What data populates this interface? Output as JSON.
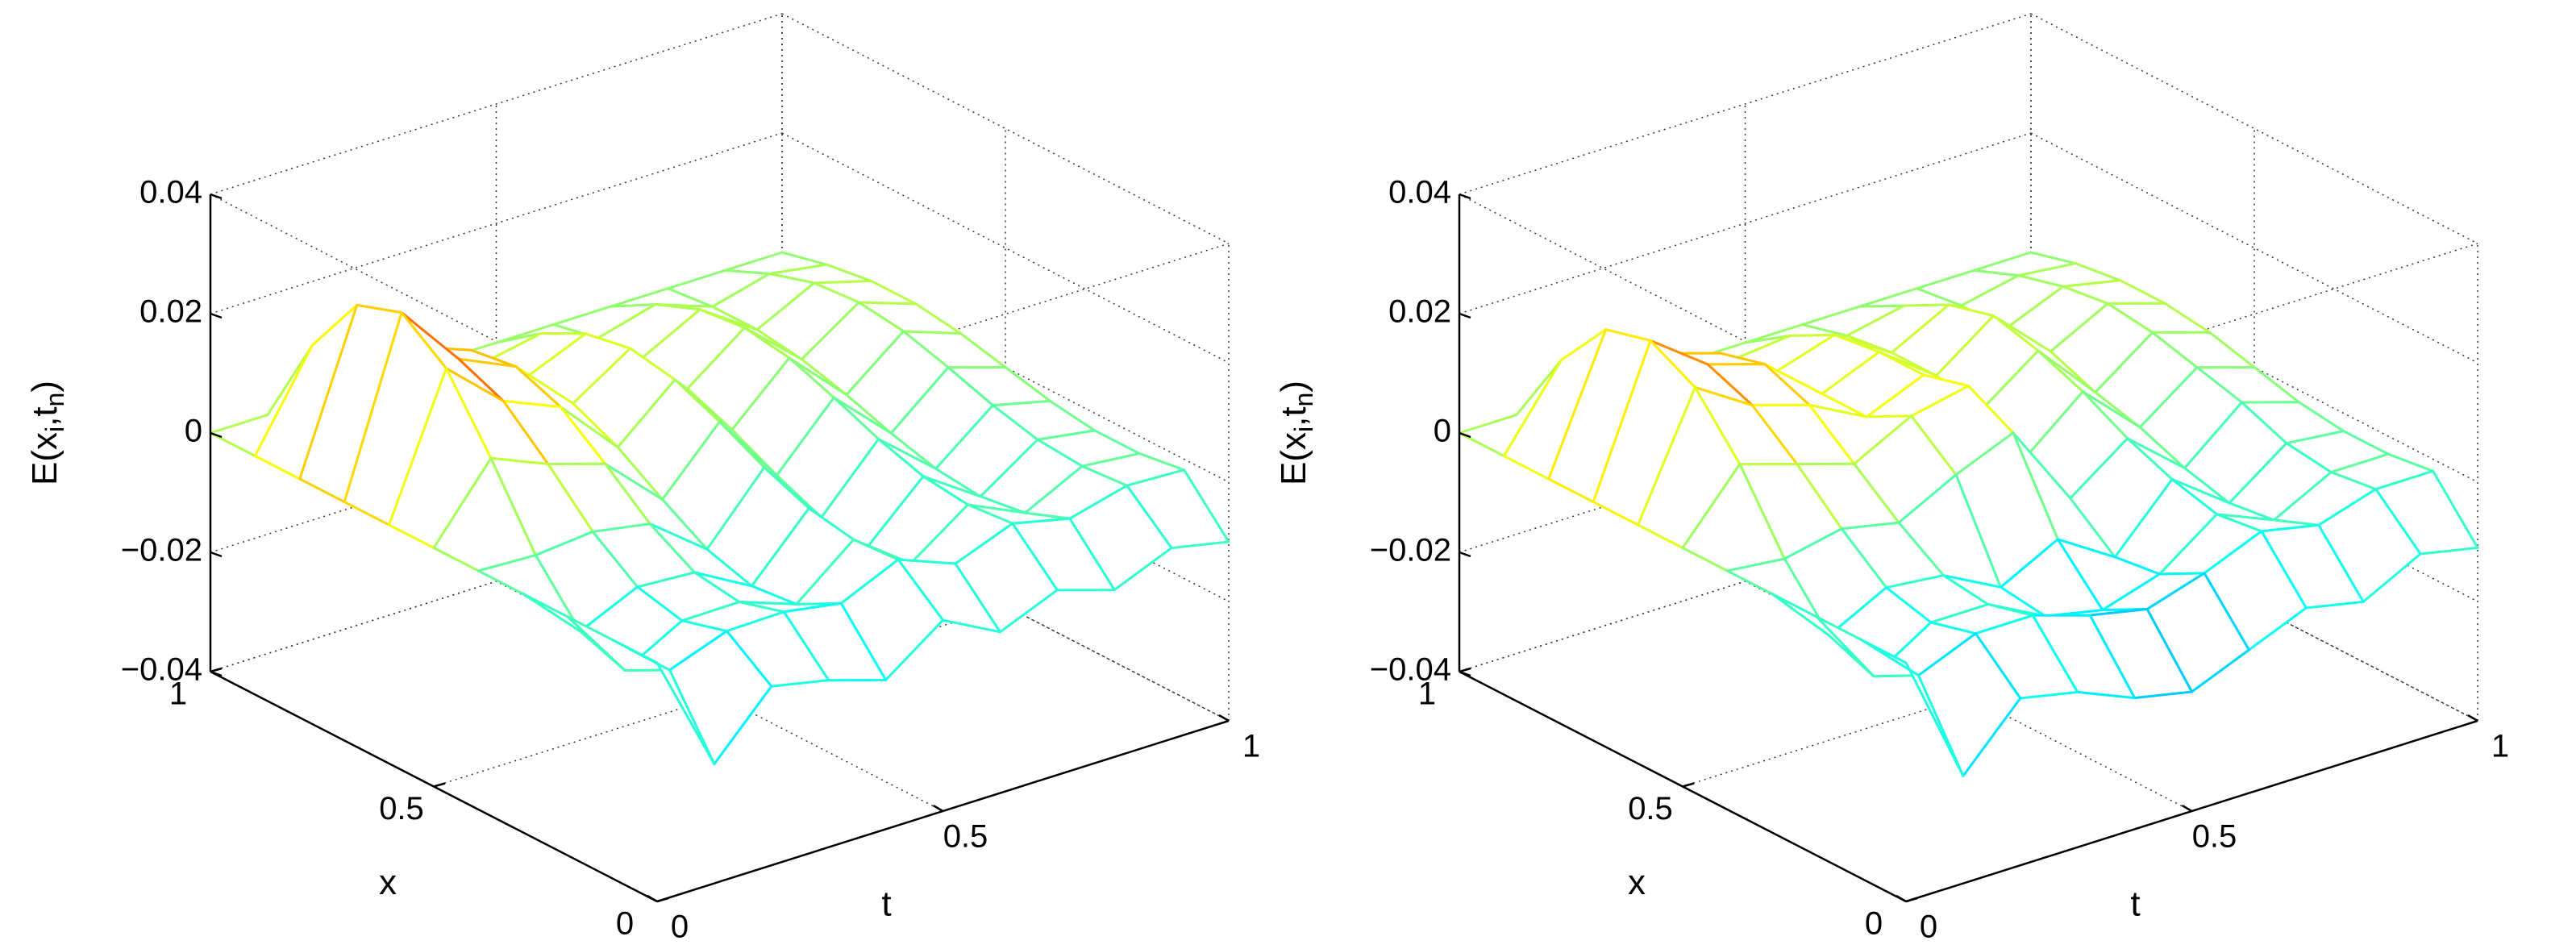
{
  "chart_data": [
    {
      "type": "surface",
      "colormap": "jet",
      "grid": true,
      "xlabel": "x",
      "ylabel": "t",
      "zlabel": [
        "E(x",
        "i",
        ",t",
        "n",
        ")"
      ],
      "xlim": [
        0,
        1
      ],
      "xticks": [
        0,
        0.5,
        1
      ],
      "tlim": [
        0,
        1
      ],
      "tticks": [
        0,
        0.5,
        1
      ],
      "zlim": [
        -0.04,
        0.04
      ],
      "zticks": [
        {
          "value": -0.04,
          "label": "−0.04"
        },
        {
          "value": -0.02,
          "label": "−0.02"
        },
        0,
        0.02,
        0.04
      ],
      "x": [
        0,
        0.1,
        0.2,
        0.3,
        0.4,
        0.5,
        0.6,
        0.7,
        0.8,
        0.9,
        1
      ],
      "t": [
        0,
        0.1,
        0.2,
        0.3,
        0.4,
        0.5,
        0.6,
        0.7,
        0.8,
        0.9,
        1
      ],
      "z": [
        [
          0,
          -0.02,
          -0.01,
          -0.012,
          -0.015,
          -0.008,
          -0.013,
          -0.009,
          -0.012,
          -0.008,
          -0.01
        ],
        [
          0,
          -0.0081,
          -0.0046,
          -0.0044,
          -0.006,
          -0.0017,
          -0.0054,
          -0.0017,
          -0.0039,
          -0.0014,
          -0.0018
        ],
        [
          0,
          -0.012,
          -0.0067,
          -0.0066,
          -0.01,
          -0.0022,
          -0.0092,
          -0.0024,
          -0.0068,
          -0.002,
          -0.0029
        ],
        [
          0,
          -0.0093,
          -0.0049,
          -0.0055,
          -0.0108,
          -0.0008,
          -0.0106,
          -0.0015,
          -0.0079,
          -0.0014,
          -0.0029
        ],
        [
          0,
          -0.0004,
          0.0005,
          -0.0012,
          -0.0085,
          0.0022,
          -0.0092,
          0.0009,
          -0.0071,
          0.0005,
          -0.0018
        ],
        [
          0,
          0.012,
          0.008,
          0.005,
          -0.004,
          0.006,
          -0.006,
          0.004,
          -0.005,
          0.003,
          0
        ],
        [
          0,
          0.0232,
          0.0147,
          0.0107,
          0.0009,
          0.0092,
          -0.0022,
          0.0068,
          -0.0024,
          0.0052,
          0.0018
        ],
        [
          0,
          0.0287,
          0.0179,
          0.0136,
          0.0044,
          0.0106,
          0.0008,
          0.008,
          -0.0003,
          0.0062,
          0.0029
        ],
        [
          0,
          0.0261,
          0.0161,
          0.0125,
          0.0052,
          0.0092,
          0.0022,
          0.0072,
          0.0008,
          0.0056,
          0.0029
        ],
        [
          0,
          0.0155,
          0.0096,
          0.0075,
          0.0035,
          0.0054,
          0.0016,
          0.0042,
          0.0008,
          0.0033,
          0.0018
        ],
        [
          0,
          0,
          0,
          0,
          0,
          0,
          0,
          0,
          0,
          0,
          0
        ]
      ]
    },
    {
      "type": "surface",
      "colormap": "jet",
      "grid": true,
      "xlabel": "x",
      "ylabel": "t",
      "zlabel": [
        "E(x",
        "i",
        ",t",
        "n",
        ")"
      ],
      "xlim": [
        0,
        1
      ],
      "xticks": [
        0,
        0.5,
        1
      ],
      "tlim": [
        0,
        1
      ],
      "tticks": [
        0,
        0.5,
        1
      ],
      "zlim": [
        -0.04,
        0.04
      ],
      "zticks": [
        {
          "value": -0.04,
          "label": "−0.04"
        },
        {
          "value": -0.02,
          "label": "−0.02"
        },
        0,
        0.02,
        0.04
      ],
      "x": [
        0,
        0.1,
        0.2,
        0.3,
        0.4,
        0.5,
        0.6,
        0.7,
        0.8,
        0.9,
        1
      ],
      "t": [
        0,
        0.1,
        0.2,
        0.3,
        0.4,
        0.5,
        0.6,
        0.7,
        0.8,
        0.9,
        1
      ],
      "z": [
        [
          0,
          -0.022,
          -0.012,
          -0.014,
          -0.018,
          -0.02,
          -0.016,
          -0.012,
          -0.014,
          -0.009,
          -0.011
        ],
        [
          0,
          -0.009,
          -0.005,
          -0.005,
          -0.008,
          -0.01,
          -0.007,
          -0.003,
          -0.005,
          -0.002,
          -0.002
        ],
        [
          0,
          -0.013,
          -0.007,
          -0.007,
          -0.012,
          -0.014,
          -0.011,
          -0.004,
          -0.008,
          -0.003,
          -0.003
        ],
        [
          0,
          -0.01,
          -0.005,
          -0.006,
          -0.011,
          -0.006,
          -0.012,
          -0.002,
          -0.009,
          -0.002,
          -0.003
        ],
        [
          0,
          -0.001,
          0.001,
          -0.001,
          0.004,
          0.008,
          -0.006,
          0.001,
          -0.007,
          0.001,
          -0.002
        ],
        [
          0,
          0.011,
          0.008,
          0.005,
          0.01,
          0.012,
          -0.003,
          0.005,
          -0.004,
          0.003,
          0
        ],
        [
          0,
          0.02,
          0.014,
          0.011,
          0.006,
          0.01,
          0.001,
          0.008,
          -0.002,
          0.005,
          0.002
        ],
        [
          0,
          0.024,
          0.017,
          0.014,
          0.006,
          0.01,
          0.003,
          0.01,
          0.001,
          0.006,
          0.003
        ],
        [
          0,
          0.022,
          0.015,
          0.012,
          0.006,
          0.009,
          0.003,
          0.008,
          0.001,
          0.005,
          0.003
        ],
        [
          0,
          0.013,
          0.009,
          0.007,
          0.004,
          0.005,
          0.002,
          0.004,
          0.001,
          0.003,
          0.002
        ],
        [
          0,
          0,
          0,
          0,
          0,
          0,
          0,
          0,
          0,
          0,
          0
        ]
      ]
    }
  ]
}
